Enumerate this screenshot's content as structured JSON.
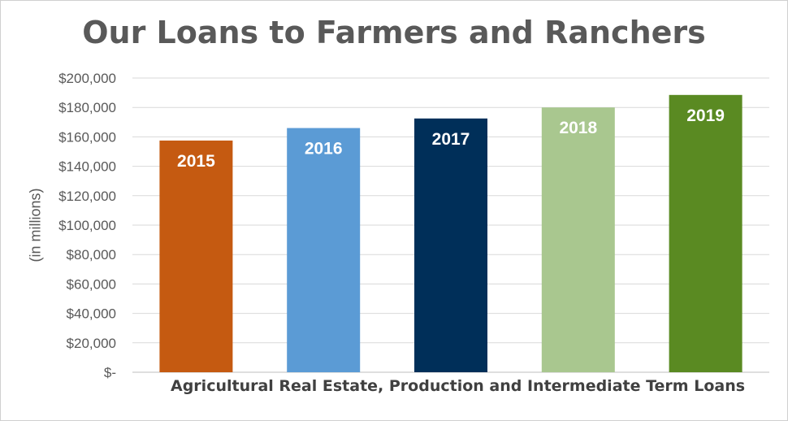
{
  "chart_data": {
    "type": "bar",
    "title": "Our Loans to Farmers and Ranchers",
    "xlabel": "Agricultural Real Estate, Production and Intermediate Term Loans",
    "ylabel": "(in millions)",
    "categories": [
      "2015",
      "2016",
      "2017",
      "2018",
      "2019"
    ],
    "values": [
      157500,
      166000,
      172500,
      180000,
      188500
    ],
    "colors": [
      "#c55a11",
      "#5b9bd5",
      "#002f59",
      "#a9c78f",
      "#5a8a22"
    ],
    "ylim": [
      0,
      200000
    ],
    "yticks": [
      0,
      20000,
      40000,
      60000,
      80000,
      100000,
      120000,
      140000,
      160000,
      180000,
      200000
    ],
    "ytick_labels": [
      "$-",
      "$20,000",
      "$40,000",
      "$60,000",
      "$80,000",
      "$100,000",
      "$120,000",
      "$140,000",
      "$160,000",
      "$180,000",
      "$200,000"
    ],
    "data_labels": [
      "2015",
      "2016",
      "2017",
      "2018",
      "2019"
    ],
    "grid": true,
    "legend": "none"
  }
}
